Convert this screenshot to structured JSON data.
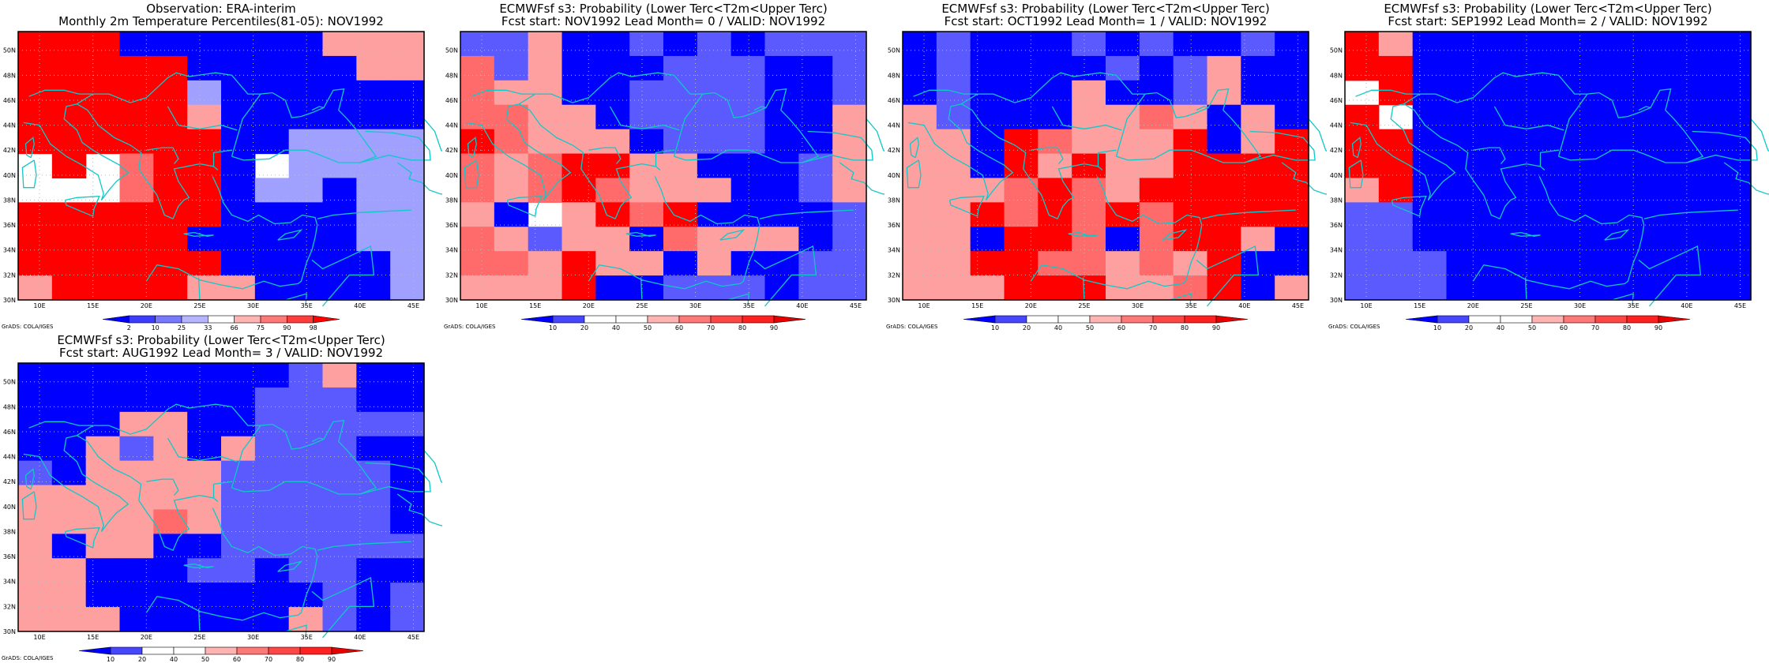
{
  "map": {
    "lon_ticks": [
      "10E",
      "15E",
      "20E",
      "25E",
      "30E",
      "35E",
      "40E",
      "45E"
    ],
    "lat_ticks": [
      "50N",
      "48N",
      "46N",
      "44N",
      "42N",
      "40N",
      "38N",
      "36N",
      "34N",
      "32N",
      "30N"
    ]
  },
  "credit": "GrADS: COLA/IGES",
  "colors": {
    "obs": [
      "#0000ff",
      "#5a5aff",
      "#a0a0ff",
      "#ffffff",
      "#ffa0a0",
      "#ff6a6a",
      "#ff0000"
    ],
    "prob": [
      "#0000ff",
      "#5a5aff",
      "#ffffff",
      "#ffffff",
      "#ffa0a0",
      "#ff6a6a",
      "#ff0000"
    ],
    "coast": "#10c8c8"
  },
  "panels": [
    {
      "title1": "Observation: ERA-interim",
      "title2": "Monthly 2m Temperature Percentiles(81-05): NOV1992",
      "colorbar_labels": [
        "2",
        "10",
        "25",
        "33",
        "66",
        "75",
        "90",
        "98"
      ],
      "grid": [
        "666000000444",
        "666660000044",
        "666662000000",
        "666664000000",
        "666666002222",
        "767566032222",
        "777566022022",
        "666666000022",
        "666660000022",
        "666666000002",
        "466664400002"
      ]
    },
    {
      "title1": "ECMWFsf s3: Probability (Lower Terc<T2m<Upper Terc)",
      "title2": "Fcst start: NOV1992   Lead Month= 0 / VALID: NOV1992",
      "colorbar_labels": [
        "10",
        "20",
        "40",
        "50",
        "60",
        "70",
        "80",
        "90"
      ],
      "grid": [
        "114001010111",
        "514000111001",
        "544001111001",
        "554401111004",
        "654440111004",
        "545664400014",
        "545654440014",
        "403465600001",
        "541440544401",
        "554644040011",
        "444600111011"
      ]
    },
    {
      "title1": "ECMWFsf s3: Probability (Lower Terc<T2m<Upper Terc)",
      "title2": "Fcst start: OCT1992   Lead Month= 1 / VALID: NOV1992",
      "colorbar_labels": [
        "10",
        "20",
        "40",
        "50",
        "60",
        "70",
        "80",
        "90"
      ],
      "grid": [
        "010001010010",
        "010000101400",
        "010004001400",
        "410004454040",
        "440654446046",
        "440646446666",
        "444565466666",
        "446565656666",
        "440665056640",
        "446655454600",
        "444666445604"
      ]
    },
    {
      "title1": "ECMWFsf s3: Probability (Lower Terc<T2m<Upper Terc)",
      "title2": "Fcst start: SEP1992   Lead Month= 2 / VALID: NOV1992",
      "colorbar_labels": [
        "10",
        "20",
        "40",
        "50",
        "60",
        "70",
        "80",
        "90"
      ],
      "grid": [
        "640000000000",
        "660000000000",
        "760000000000",
        "670000000000",
        "660000000000",
        "660000000000",
        "460000000000",
        "110000000000",
        "110000000000",
        "111000000000",
        "111000000000"
      ]
    },
    {
      "title1": "ECMWFsf s3: Probability (Lower Terc<T2m<Upper Terc)",
      "title2": "Fcst start: AUG1992   Lead Month= 3 / VALID: NOV1992",
      "colorbar_labels": [
        "10",
        "20",
        "40",
        "50",
        "60",
        "70",
        "80",
        "90"
      ],
      "grid": [
        "000000001400",
        "000000011100",
        "000440011111",
        "004140411100",
        "104444111110",
        "444444111110",
        "444454111110",
        "404400111111",
        "440001101100",
        "440000000101",
        "444000004101"
      ]
    }
  ]
}
